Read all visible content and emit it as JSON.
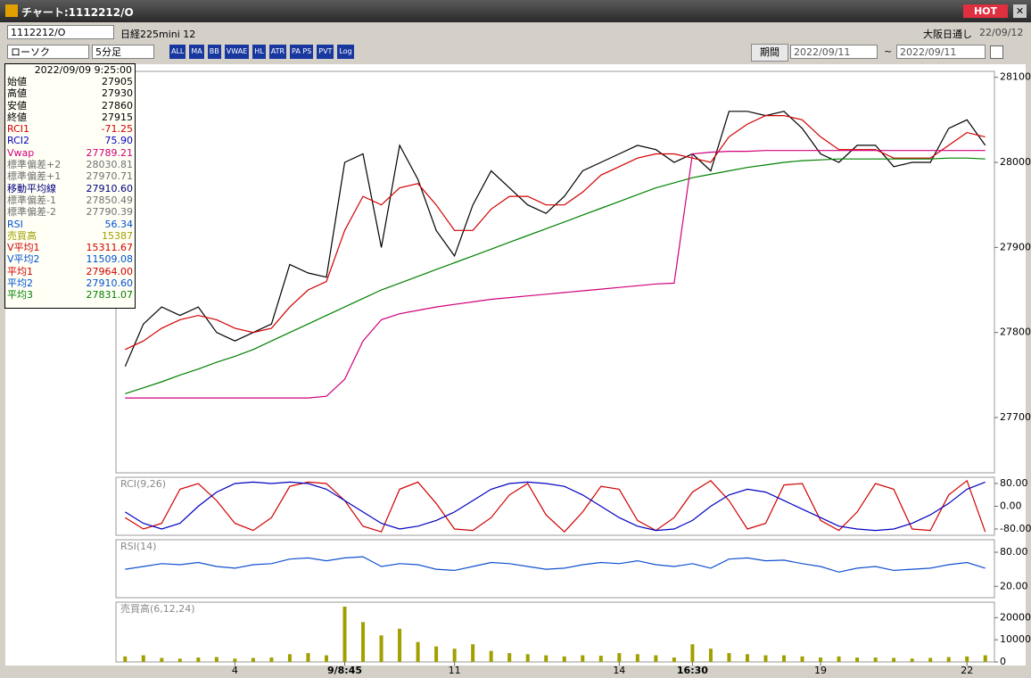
{
  "window": {
    "title": "チャート:1112212/O",
    "hot": "HOT"
  },
  "toolbar": {
    "symbol": "1112212/O",
    "name": "日経225mini 12",
    "session": "大阪日通し",
    "date": "22/09/12",
    "chart_kind": "ローソク",
    "interval": "5分足",
    "period": "期間",
    "from": "2022/09/11",
    "tilde": "~",
    "to": "2022/09/11",
    "icon_labels": [
      "ALL",
      "MA",
      "BB",
      "VWAE",
      "HL",
      "ATR",
      "PA PS",
      "PVT",
      "Log"
    ]
  },
  "info": {
    "time": "2022/09/09 9:25:00",
    "rows": [
      {
        "label": "始値",
        "value": "27905",
        "color": "#000000"
      },
      {
        "label": "高値",
        "value": "27930",
        "color": "#000000"
      },
      {
        "label": "安値",
        "value": "27860",
        "color": "#000000"
      },
      {
        "label": "終値",
        "value": "27915",
        "color": "#000000"
      },
      {
        "label": "RCI1",
        "value": "-71.25",
        "color": "#d00000"
      },
      {
        "label": "RCI2",
        "value": "75.90",
        "color": "#0000c0"
      },
      {
        "label": "Vwap",
        "value": "27789.21",
        "color": "#d0007a"
      },
      {
        "label": "標準偏差+2",
        "value": "28030.81",
        "color": "#707070"
      },
      {
        "label": "標準偏差+1",
        "value": "27970.71",
        "color": "#707070"
      },
      {
        "label": "移動平均線",
        "value": "27910.60",
        "color": "#000080"
      },
      {
        "label": "標準偏差-1",
        "value": "27850.49",
        "color": "#707070"
      },
      {
        "label": "標準偏差-2",
        "value": "27790.39",
        "color": "#707070"
      },
      {
        "label": "RSI",
        "value": "56.34",
        "color": "#0050d0"
      },
      {
        "label": "売買高",
        "value": "15387",
        "color": "#a0a000"
      },
      {
        "label": "V平均1",
        "value": "15311.67",
        "color": "#d00000"
      },
      {
        "label": "V平均2",
        "value": "11509.08",
        "color": "#0050d0"
      },
      {
        "label": "平均1",
        "value": "27964.00",
        "color": "#d00000"
      },
      {
        "label": "平均2",
        "value": "27910.60",
        "color": "#0050d0"
      },
      {
        "label": "平均3",
        "value": "27831.07",
        "color": "#008000"
      }
    ]
  },
  "chart_data": [
    {
      "type": "line",
      "ylim": [
        27635,
        28107
      ],
      "yticks": [
        27700,
        27800,
        27900,
        28000,
        28100
      ],
      "series": [
        {
          "color": "#000000",
          "values": [
            27760,
            27810,
            27830,
            27820,
            27830,
            27800,
            27790,
            27800,
            27810,
            27880,
            27870,
            27865,
            28000,
            28010,
            27900,
            28020,
            27980,
            27920,
            27890,
            27950,
            27990,
            27970,
            27950,
            27940,
            27960,
            27990,
            28000,
            28010,
            28020,
            28015,
            28000,
            28010,
            27990,
            28060,
            28060,
            28055,
            28060,
            28040,
            28010,
            28000,
            28020,
            28020,
            27995,
            28000,
            28000,
            28040,
            28050,
            28020
          ]
        },
        {
          "color": "#d00000",
          "values": [
            27780,
            27790,
            27805,
            27815,
            27820,
            27815,
            27805,
            27800,
            27805,
            27830,
            27850,
            27860,
            27920,
            27960,
            27950,
            27970,
            27975,
            27950,
            27920,
            27920,
            27945,
            27960,
            27960,
            27950,
            27950,
            27965,
            27985,
            27995,
            28005,
            28010,
            28010,
            28005,
            28000,
            28030,
            28045,
            28055,
            28055,
            28050,
            28030,
            28015,
            28015,
            28015,
            28005,
            28005,
            28005,
            28020,
            28035,
            28030
          ]
        },
        {
          "color": "#008000",
          "values": [
            27728,
            27735,
            27742,
            27750,
            27757,
            27765,
            27772,
            27780,
            27790,
            27800,
            27810,
            27820,
            27830,
            27840,
            27850,
            27858,
            27866,
            27874,
            27882,
            27890,
            27898,
            27906,
            27914,
            27922,
            27930,
            27938,
            27946,
            27954,
            27962,
            27970,
            27976,
            27982,
            27986,
            27990,
            27994,
            27997,
            28000,
            28002,
            28003,
            28004,
            28004,
            28004,
            28004,
            28004,
            28004,
            28005,
            28005,
            28004
          ]
        },
        {
          "color": "#d0007a",
          "values": [
            27723,
            27723,
            27723,
            27723,
            27723,
            27723,
            27723,
            27723,
            27723,
            27723,
            27723,
            27725,
            27745,
            27790,
            27815,
            27822,
            27826,
            27830,
            27833,
            27836,
            27839,
            27841,
            27843,
            27845,
            27847,
            27849,
            27851,
            27853,
            27855,
            27857,
            27858,
            28010,
            28012,
            28013,
            28013,
            28014,
            28014,
            28014,
            28014,
            28014,
            28014,
            28014,
            28014,
            28014,
            28014,
            28014,
            28014,
            28014
          ]
        }
      ]
    },
    {
      "type": "line",
      "title": "RCI(9,26)",
      "ylim": [
        -102,
        102
      ],
      "yticks": [
        {
          "value": 80,
          "label": "80.00"
        },
        {
          "value": 0,
          "label": "0.00"
        },
        {
          "value": -80,
          "label": "-80.00"
        }
      ],
      "series": [
        {
          "color": "#d00000",
          "values": [
            -40,
            -80,
            -60,
            60,
            80,
            20,
            -60,
            -85,
            -40,
            70,
            85,
            80,
            20,
            -70,
            -90,
            60,
            85,
            10,
            -80,
            -85,
            -40,
            40,
            80,
            -30,
            -90,
            -20,
            70,
            60,
            -50,
            -85,
            -40,
            50,
            90,
            20,
            -80,
            -60,
            75,
            80,
            -50,
            -85,
            -20,
            80,
            60,
            -80,
            -85,
            40,
            90,
            -90
          ]
        },
        {
          "color": "#0000c0",
          "values": [
            -20,
            -60,
            -80,
            -60,
            0,
            50,
            80,
            85,
            80,
            85,
            80,
            60,
            20,
            -20,
            -60,
            -80,
            -70,
            -50,
            -20,
            20,
            60,
            80,
            85,
            80,
            70,
            40,
            0,
            -40,
            -70,
            -85,
            -80,
            -50,
            0,
            40,
            60,
            50,
            20,
            -10,
            -40,
            -70,
            -80,
            -85,
            -80,
            -60,
            -30,
            10,
            60,
            85
          ]
        }
      ]
    },
    {
      "type": "line",
      "title": "RSI(14)",
      "ylim": [
        0,
        102
      ],
      "yticks": [
        {
          "value": 80,
          "label": "80.00"
        },
        {
          "value": 20,
          "label": "20.00"
        }
      ],
      "series": [
        {
          "color": "#1050d0",
          "values": [
            50,
            55,
            60,
            58,
            62,
            55,
            52,
            58,
            60,
            68,
            70,
            65,
            70,
            72,
            55,
            60,
            58,
            50,
            48,
            55,
            62,
            60,
            55,
            50,
            52,
            58,
            62,
            60,
            65,
            58,
            55,
            60,
            52,
            68,
            70,
            65,
            66,
            60,
            55,
            45,
            52,
            55,
            48,
            50,
            52,
            58,
            62,
            52
          ]
        }
      ]
    },
    {
      "type": "bar",
      "title": "売買高(6,12,24)",
      "color": "#a0a000",
      "ylim": [
        0,
        27000
      ],
      "yticks": [
        20000,
        10000,
        0
      ],
      "categories": [
        null,
        null,
        null,
        null,
        null,
        null,
        "4",
        null,
        null,
        null,
        null,
        null,
        "9/8:45",
        null,
        null,
        null,
        null,
        null,
        "11",
        null,
        null,
        null,
        null,
        null,
        null,
        null,
        null,
        "14",
        null,
        null,
        null,
        "16:30",
        null,
        null,
        null,
        null,
        null,
        null,
        "19",
        null,
        null,
        null,
        null,
        null,
        null,
        null,
        "22",
        null
      ],
      "values": [
        2500,
        3000,
        1800,
        1500,
        2000,
        2200,
        1500,
        1800,
        2000,
        3500,
        4000,
        3000,
        25000,
        18000,
        12000,
        15000,
        9000,
        7000,
        6000,
        8000,
        5000,
        4000,
        3500,
        3000,
        2500,
        3000,
        2800,
        4000,
        3500,
        3000,
        2000,
        8000,
        6000,
        4000,
        3500,
        3000,
        3000,
        2500,
        2000,
        2500,
        2000,
        2000,
        1800,
        1500,
        1800,
        2200,
        2500,
        3000
      ]
    }
  ]
}
